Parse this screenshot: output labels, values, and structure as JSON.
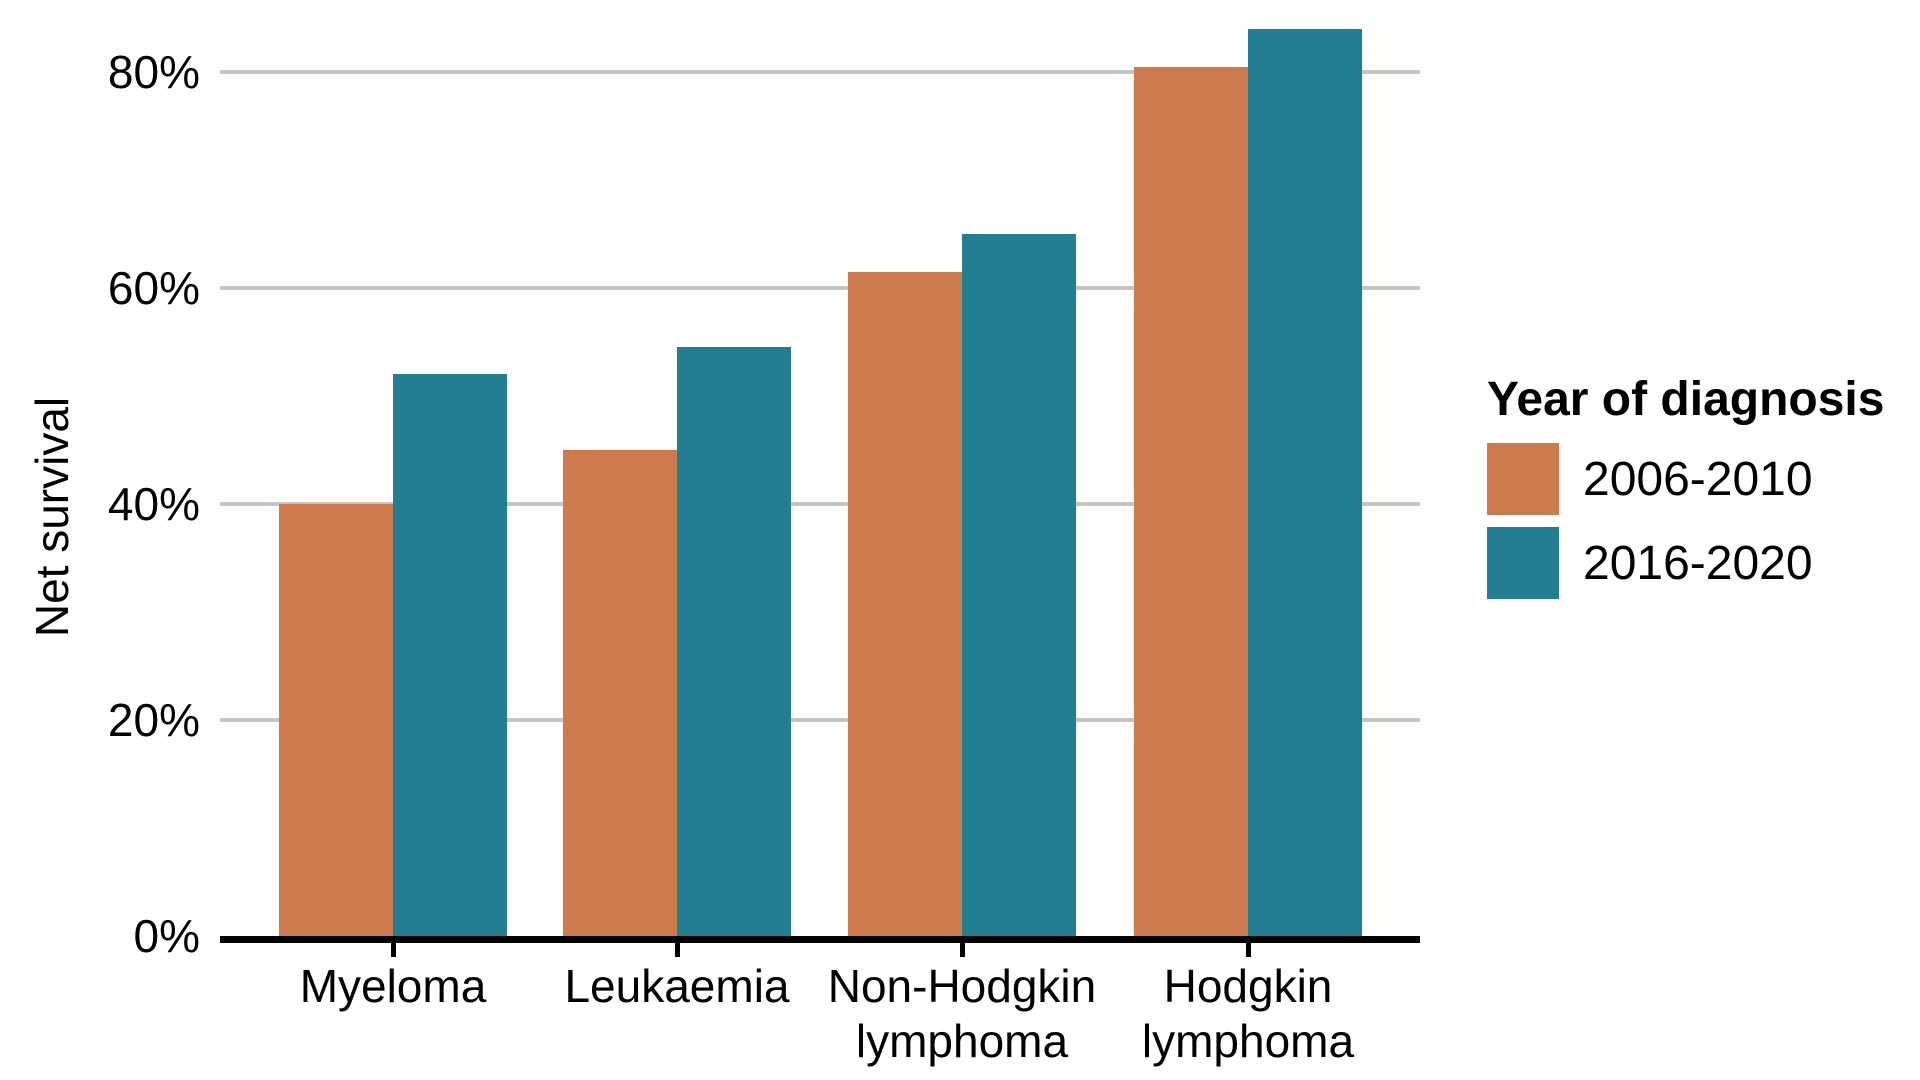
{
  "chart_data": {
    "type": "bar",
    "title": "",
    "xlabel": "",
    "ylabel": "Net survival",
    "categories": [
      "Myeloma",
      "Leukaemia",
      "Non-Hodgkin lymphoma",
      "Hodgkin lymphoma"
    ],
    "category_display": [
      "Myeloma",
      "Leukaemia",
      "Non-Hodgkin\nlymphoma",
      "Hodgkin\nlymphoma"
    ],
    "series": [
      {
        "name": "2006-2010",
        "color": "#cd7b4c",
        "values": [
          40,
          45,
          61.5,
          80.5
        ]
      },
      {
        "name": "2016-2020",
        "color": "#237e91",
        "values": [
          52,
          54.5,
          65,
          84
        ]
      }
    ],
    "legend_title": "Year of diagnosis",
    "legend_position": "right",
    "y_ticks": [
      "0%",
      "20%",
      "40%",
      "60%",
      "80%"
    ],
    "y_tick_values": [
      0,
      20,
      40,
      60,
      80
    ],
    "ylim": [
      0,
      90
    ],
    "grid": "horizontal",
    "grid_color": "#c6c6c6",
    "axis_color": "#000000",
    "text_color": "#000000"
  }
}
